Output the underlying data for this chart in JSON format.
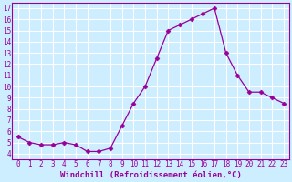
{
  "x": [
    0,
    1,
    2,
    3,
    4,
    5,
    6,
    7,
    8,
    9,
    10,
    11,
    12,
    13,
    14,
    15,
    16,
    17,
    18,
    19,
    20,
    21,
    22,
    23
  ],
  "y": [
    5.5,
    5.0,
    4.8,
    4.8,
    5.0,
    4.8,
    4.2,
    4.2,
    4.5,
    6.5,
    8.5,
    10.0,
    12.5,
    15.0,
    15.5,
    16.0,
    16.5,
    17.0,
    13.0,
    11.0,
    9.5,
    9.5,
    9.0,
    8.5
  ],
  "line_color": "#990099",
  "marker": "D",
  "marker_size": 2.5,
  "background_color": "#cceeff",
  "grid_color": "#ffffff",
  "xlabel": "Windchill (Refroidissement éolien,°C)",
  "xlim": [
    -0.5,
    23.5
  ],
  "ylim": [
    3.5,
    17.5
  ],
  "yticks": [
    4,
    5,
    6,
    7,
    8,
    9,
    10,
    11,
    12,
    13,
    14,
    15,
    16,
    17
  ],
  "xticks": [
    0,
    1,
    2,
    3,
    4,
    5,
    6,
    7,
    8,
    9,
    10,
    11,
    12,
    13,
    14,
    15,
    16,
    17,
    18,
    19,
    20,
    21,
    22,
    23
  ],
  "tick_fontsize": 5.5,
  "xlabel_fontsize": 6.5
}
